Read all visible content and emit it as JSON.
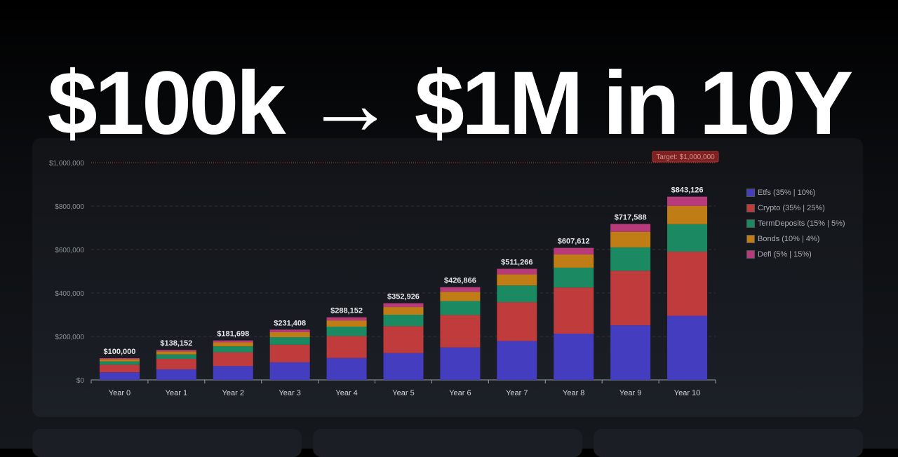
{
  "headline": "$100k → $1M in 10Y",
  "chart_data": {
    "type": "bar",
    "stacked": true,
    "categories": [
      "Year 0",
      "Year 1",
      "Year 2",
      "Year 3",
      "Year 4",
      "Year 5",
      "Year 6",
      "Year 7",
      "Year 8",
      "Year 9",
      "Year 10"
    ],
    "totals": [
      100000,
      138152,
      181698,
      231408,
      288152,
      352926,
      426866,
      511266,
      607612,
      717588,
      843126
    ],
    "total_labels": [
      "$100,000",
      "$138,152",
      "$181,698",
      "$231,408",
      "$288,152",
      "$352,926",
      "$426,866",
      "$511,266",
      "$607,612",
      "$717,588",
      "$843,126"
    ],
    "series": [
      {
        "name": "Etfs (35% | 10%)",
        "weight": 0.35,
        "color": "#453dbf"
      },
      {
        "name": "Crypto (35% | 25%)",
        "weight": 0.35,
        "color": "#c03b3b"
      },
      {
        "name": "TermDeposits (15% | 5%)",
        "weight": 0.15,
        "color": "#1b8a63"
      },
      {
        "name": "Bonds (10% | 4%)",
        "weight": 0.1,
        "color": "#c07d16"
      },
      {
        "name": "Defi (5% | 15%)",
        "weight": 0.05,
        "color": "#b73a7a"
      }
    ],
    "yticks": [
      0,
      200000,
      400000,
      600000,
      800000,
      1000000
    ],
    "ytick_labels": [
      "$0",
      "$200,000",
      "$400,000",
      "$600,000",
      "$800,000",
      "$1,000,000"
    ],
    "ylim": [
      0,
      1000000
    ],
    "target": {
      "value": 1000000,
      "label": "Target: $1,000,000",
      "color": "#c03b3b"
    },
    "grid": true,
    "legend": "right"
  }
}
